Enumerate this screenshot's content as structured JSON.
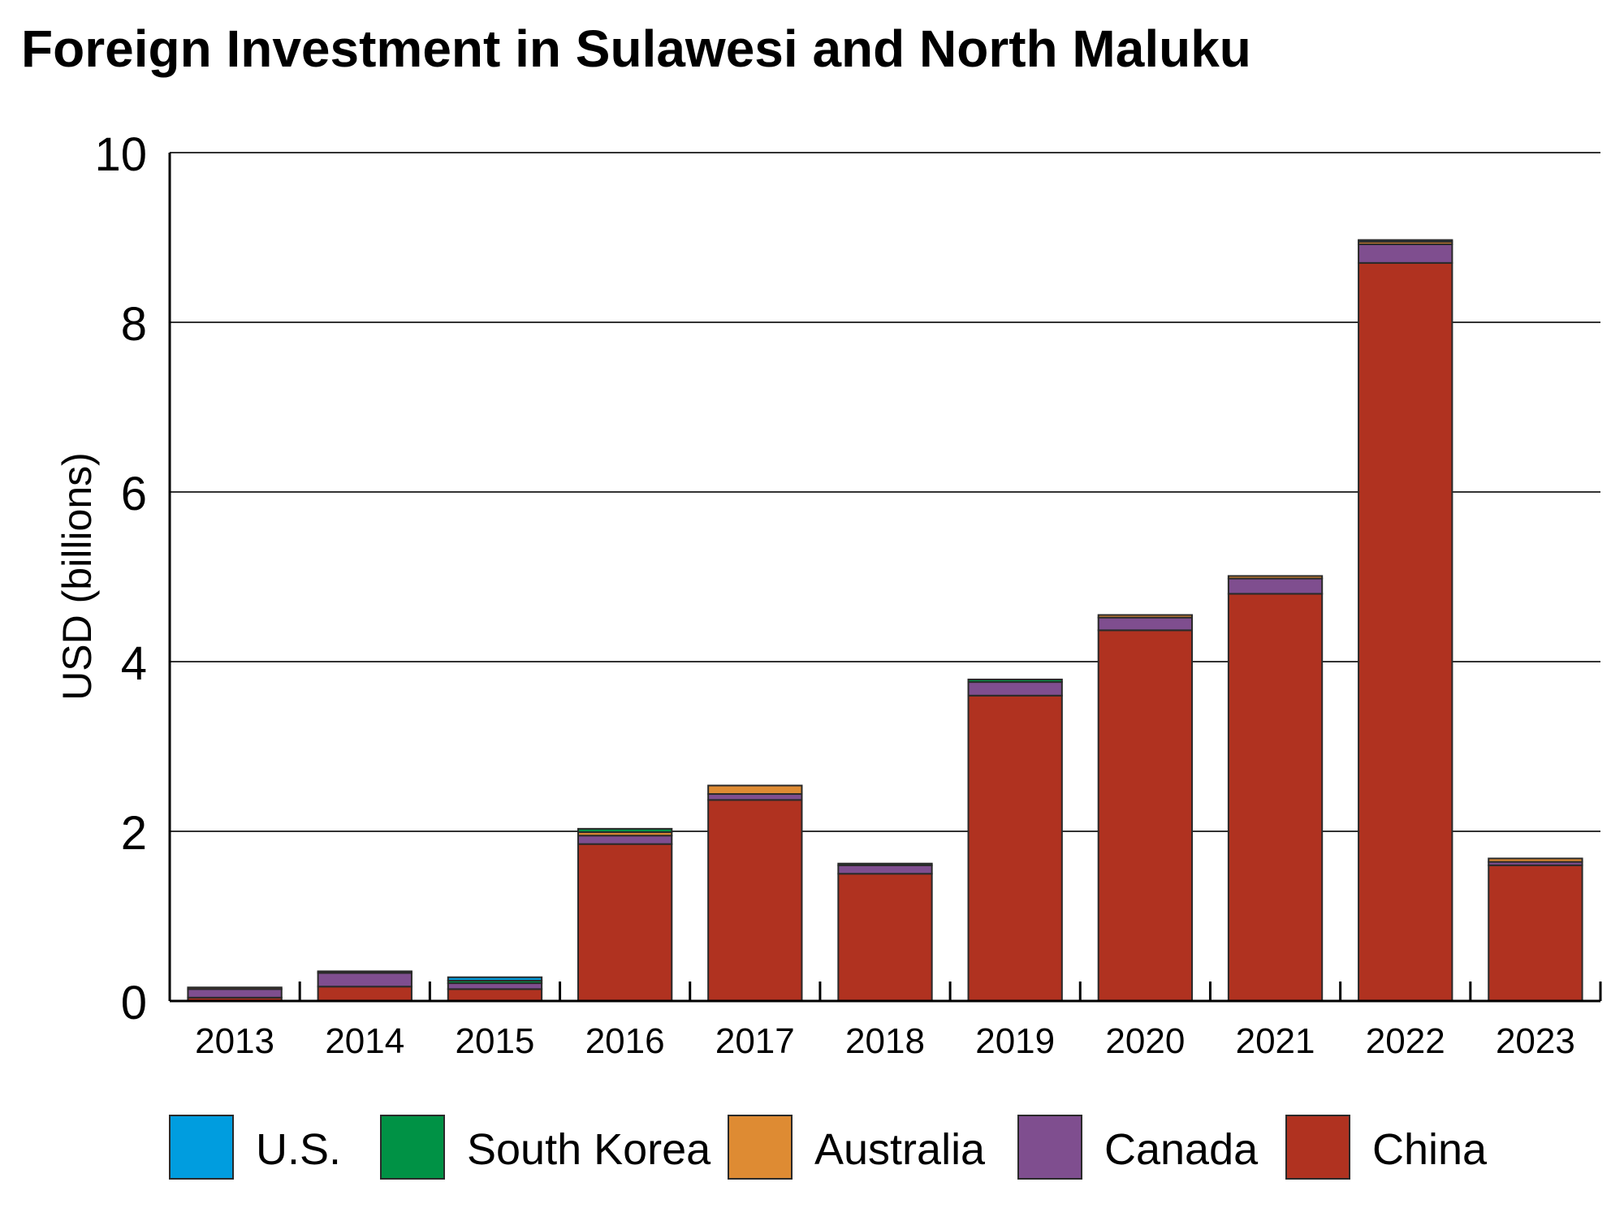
{
  "chart_data": {
    "type": "bar",
    "stacked": true,
    "title": "Foreign Investment in Sulawesi and North Maluku",
    "xlabel": "",
    "ylabel": "USD (billions)",
    "ylim": [
      0,
      10
    ],
    "yticks": [
      0,
      2,
      4,
      6,
      8,
      10
    ],
    "grid": true,
    "legend_position": "bottom",
    "categories": [
      "2013",
      "2014",
      "2015",
      "2016",
      "2017",
      "2018",
      "2019",
      "2020",
      "2021",
      "2022",
      "2023"
    ],
    "series": [
      {
        "name": "China",
        "color": "#b03220",
        "values": [
          0.04,
          0.17,
          0.14,
          1.85,
          2.37,
          1.5,
          3.6,
          4.37,
          4.8,
          8.7,
          1.6
        ]
      },
      {
        "name": "Canada",
        "color": "#7f4e8f",
        "values": [
          0.1,
          0.16,
          0.07,
          0.1,
          0.07,
          0.1,
          0.16,
          0.15,
          0.18,
          0.22,
          0.04
        ]
      },
      {
        "name": "Australia",
        "color": "#de8b33",
        "values": [
          0.02,
          0.01,
          0.0,
          0.04,
          0.1,
          0.0,
          0.0,
          0.03,
          0.03,
          0.03,
          0.04
        ]
      },
      {
        "name": "South Korea",
        "color": "#009245",
        "values": [
          0.0,
          0.01,
          0.03,
          0.04,
          0.0,
          0.02,
          0.03,
          0.0,
          0.0,
          0.0,
          0.0
        ]
      },
      {
        "name": "U.S.",
        "color": "#009ddf",
        "values": [
          0.0,
          0.0,
          0.04,
          0.0,
          0.0,
          0.0,
          0.0,
          0.0,
          0.0,
          0.02,
          0.0
        ]
      }
    ],
    "legend_order": [
      "U.S.",
      "South Korea",
      "Australia",
      "Canada",
      "China"
    ]
  }
}
